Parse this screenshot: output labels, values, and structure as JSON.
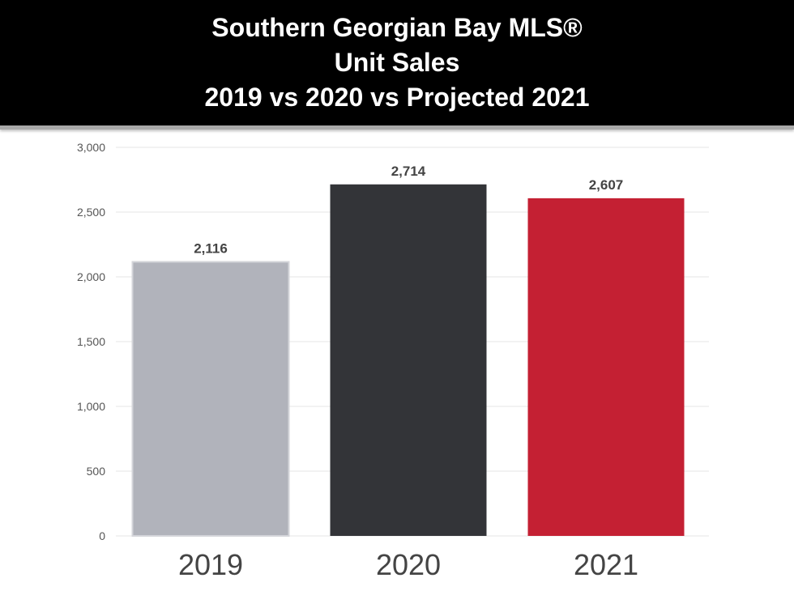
{
  "header": {
    "title_lines": [
      "Southern Georgian Bay MLS®",
      "Unit Sales",
      "2019 vs 2020 vs Projected 2021"
    ]
  },
  "chart_data": {
    "type": "bar",
    "title": "Southern Georgian Bay MLS® Unit Sales 2019 vs 2020 vs Projected 2021",
    "categories": [
      "2019",
      "2020",
      "2021"
    ],
    "values": [
      2116,
      2714,
      2607
    ],
    "value_labels": [
      "2,116",
      "2,714",
      "2,607"
    ],
    "bar_colors": [
      "#b1b3bb",
      "#333438",
      "#c42033"
    ],
    "xlabel": "",
    "ylabel": "",
    "ylim": [
      0,
      3000
    ],
    "y_ticks": [
      0,
      500,
      1000,
      1500,
      2000,
      2500,
      3000
    ],
    "y_tick_labels": [
      "0",
      "500",
      "1,000",
      "1,500",
      "2,000",
      "2,500",
      "3,000"
    ],
    "grid": true,
    "legend": "none"
  }
}
